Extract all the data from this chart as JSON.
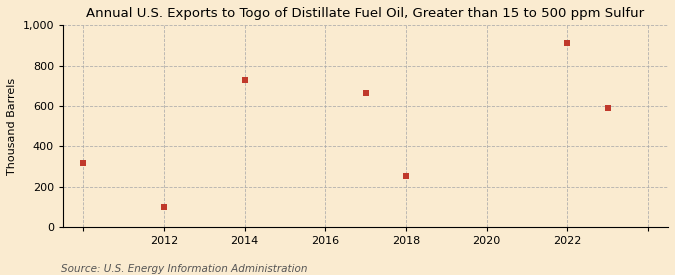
{
  "title": "Annual U.S. Exports to Togo of Distillate Fuel Oil, Greater than 15 to 500 ppm Sulfur",
  "ylabel": "Thousand Barrels",
  "source": "Source: U.S. Energy Information Administration",
  "x_values": [
    2010,
    2012,
    2014,
    2017,
    2018,
    2022,
    2023
  ],
  "y_values": [
    315,
    100,
    730,
    665,
    255,
    910,
    590
  ],
  "xlim": [
    2009.5,
    2024.5
  ],
  "ylim": [
    0,
    1000
  ],
  "yticks": [
    0,
    200,
    400,
    600,
    800,
    1000
  ],
  "ytick_labels": [
    "0",
    "200",
    "400",
    "600",
    "800",
    "1,000"
  ],
  "xticks": [
    2010,
    2012,
    2014,
    2016,
    2018,
    2020,
    2022,
    2024
  ],
  "xtick_labels": [
    "",
    "2012",
    "2014",
    "2016",
    "2018",
    "2020",
    "2022",
    ""
  ],
  "marker_color": "#c0392b",
  "marker": "s",
  "marker_size": 4,
  "background_color": "#faebd0",
  "grid_color": "#aaaaaa",
  "title_fontsize": 9.5,
  "label_fontsize": 8,
  "tick_fontsize": 8,
  "source_fontsize": 7.5
}
